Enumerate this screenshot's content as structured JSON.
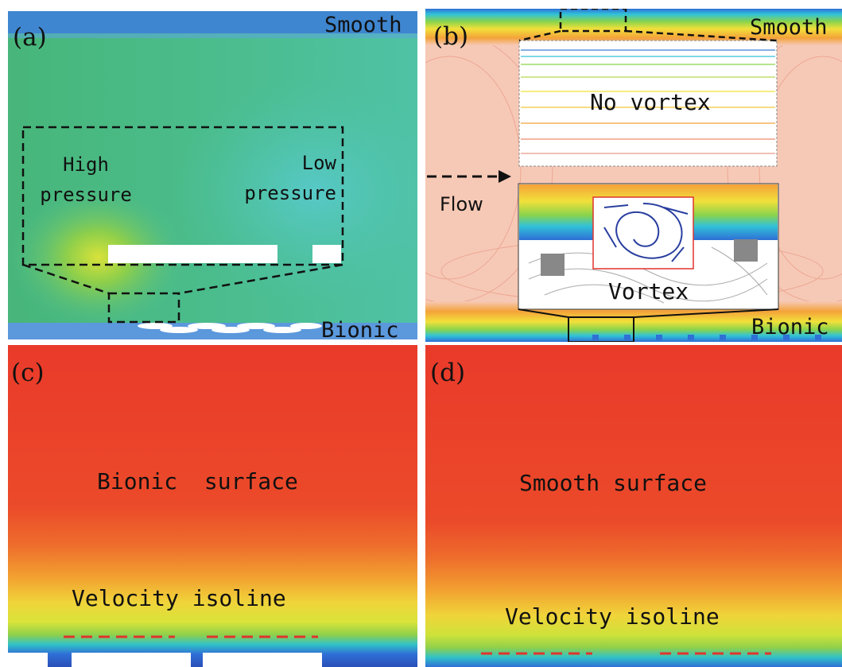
{
  "panels": {
    "a": {
      "letter": "(a)",
      "top_label": "Smooth",
      "bottom_label": "Bionic",
      "left_note": "High\npressure",
      "right_note": "Low\npressure"
    },
    "b": {
      "letter": "(b)",
      "top_label": "Smooth",
      "bottom_label": "Bionic",
      "upper_inset": "No vortex",
      "lower_inset": "Vortex",
      "flow_label": "Flow"
    },
    "c": {
      "letter": "(c)",
      "title": "Bionic  surface",
      "isoline_label": "Velocity isoline"
    },
    "d": {
      "letter": "(d)",
      "title": "Smooth surface",
      "isoline_label": "Velocity isoline"
    }
  },
  "colors": {
    "pressure_field": "#45b98a",
    "wall_blue": "#4a86d6",
    "vortex_bg": "#f6c9b6",
    "velocity_red": "#ea3a2a",
    "isoline_dash": "#e0342c"
  }
}
